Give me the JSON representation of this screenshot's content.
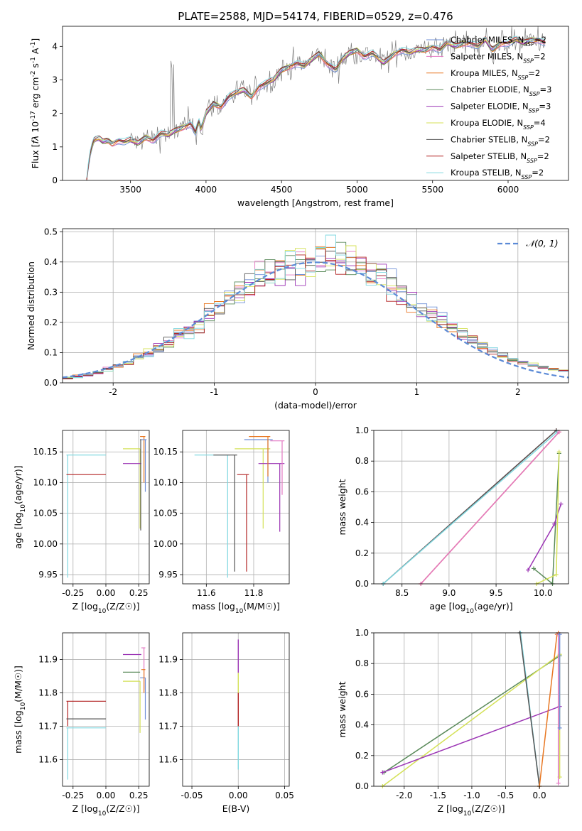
{
  "figure": {
    "title": "PLATE=2588, MJD=54174, FIBERID=0529, z=0.476"
  },
  "colors": {
    "Chabrier MILES": "#6f8fd6",
    "Salpeter MILES": "#e377c2",
    "Kroupa MILES": "#e87722",
    "Chabrier ELODIE": "#5a8a5a",
    "Salpeter ELODIE": "#9c36b5",
    "Kroupa ELODIE": "#d4e157",
    "Chabrier STELIB": "#555555",
    "Salpeter STELIB": "#b22222",
    "Kroupa STELIB": "#80d8e0",
    "data": "#808080",
    "normal": "#5b8ad6"
  },
  "chart_data": [
    {
      "id": "spectrum",
      "type": "line",
      "title": "PLATE=2588, MJD=54174, FIBERID=0529, z=0.476",
      "xlabel": "wavelength [Angstrom, rest frame]",
      "ylabel": "Flux [f_λ 10^-17 erg cm^-2 s^-1 A^-1]",
      "xlim": [
        3050,
        6400
      ],
      "ylim": [
        0,
        4.6
      ],
      "xticks": [
        3500,
        4000,
        4500,
        5000,
        5500,
        6000
      ],
      "yticks": [
        0,
        1,
        2,
        3,
        4
      ],
      "legend_position": "top-right",
      "legend": [
        {
          "name": "Chabrier MILES",
          "text": "Chabrier MILES, N",
          "sub": "SSP",
          "suffix": "=2"
        },
        {
          "name": "Salpeter MILES",
          "text": "Salpeter MILES, N",
          "sub": "SSP",
          "suffix": "=2"
        },
        {
          "name": "Kroupa MILES",
          "text": "Kroupa MILES, N",
          "sub": "SSP",
          "suffix": "=2"
        },
        {
          "name": "Chabrier ELODIE",
          "text": "Chabrier ELODIE, N",
          "sub": "SSP",
          "suffix": "=3"
        },
        {
          "name": "Salpeter ELODIE",
          "text": "Salpeter ELODIE, N",
          "sub": "SSP",
          "suffix": "=3"
        },
        {
          "name": "Kroupa ELODIE",
          "text": "Kroupa ELODIE, N",
          "sub": "SSP",
          "suffix": "=4"
        },
        {
          "name": "Chabrier STELIB",
          "text": "Chabrier STELIB, N",
          "sub": "SSP",
          "suffix": "=2"
        },
        {
          "name": "Salpeter STELIB",
          "text": "Salpeter STELIB, N",
          "sub": "SSP",
          "suffix": "=2"
        },
        {
          "name": "Kroupa STELIB",
          "text": "Kroupa STELIB, N",
          "sub": "SSP",
          "suffix": "=2"
        }
      ],
      "model_curve": {
        "x": [
          3210,
          3225,
          3240,
          3260,
          3290,
          3320,
          3350,
          3380,
          3420,
          3460,
          3500,
          3550,
          3600,
          3650,
          3700,
          3750,
          3800,
          3850,
          3900,
          3933,
          3950,
          3968,
          4000,
          4050,
          4100,
          4150,
          4200,
          4250,
          4300,
          4350,
          4400,
          4450,
          4500,
          4550,
          4600,
          4650,
          4700,
          4750,
          4800,
          4861,
          4900,
          4950,
          5000,
          5050,
          5100,
          5175,
          5200,
          5250,
          5300,
          5350,
          5400,
          5450,
          5500,
          5550,
          5600,
          5650,
          5700,
          5750,
          5800,
          5850,
          5893,
          5950,
          6000,
          6050,
          6100,
          6150,
          6200,
          6250
        ],
        "y": [
          0,
          0.6,
          0.95,
          1.2,
          1.25,
          1.15,
          1.2,
          1.1,
          1.2,
          1.15,
          1.2,
          1.1,
          1.3,
          1.2,
          1.4,
          1.35,
          1.5,
          1.6,
          1.7,
          1.4,
          1.8,
          1.5,
          2.0,
          2.3,
          2.2,
          2.5,
          2.6,
          2.7,
          2.5,
          2.8,
          2.9,
          3.0,
          3.3,
          3.4,
          3.5,
          3.4,
          3.6,
          3.8,
          3.5,
          3.3,
          3.6,
          3.8,
          3.9,
          3.7,
          3.8,
          3.5,
          3.6,
          3.8,
          3.9,
          3.8,
          3.9,
          3.9,
          4.0,
          3.9,
          4.1,
          4.0,
          4.1,
          4.1,
          4.0,
          4.2,
          3.9,
          4.1,
          4.1,
          4.2,
          4.1,
          4.2,
          4.2,
          4.1
        ]
      },
      "data_noise_start": 3500
    },
    {
      "id": "residuals",
      "type": "line",
      "xlabel": "(data-model)/error",
      "ylabel": "Normed distribution",
      "xlim": [
        -2.5,
        2.5
      ],
      "ylim": [
        0,
        0.51
      ],
      "xticks": [
        -2,
        -1,
        0,
        1,
        2
      ],
      "yticks": [
        0,
        0.1,
        0.2,
        0.3,
        0.4,
        0.5
      ],
      "legend_position": "top-right",
      "legend_label": "𝒩(0, 1)",
      "bin_width": 0.1
    },
    {
      "id": "age-vs-Z",
      "type": "line",
      "xlabel": "Z [log10(Z/Z☉)]",
      "ylabel": "age  [log10(age/yr)]",
      "xlim": [
        -0.33,
        0.33
      ],
      "ylim": [
        9.935,
        10.185
      ],
      "xticks": [
        -0.25,
        0.0,
        0.25
      ],
      "yticks": [
        9.95,
        10.0,
        10.05,
        10.1,
        10.15
      ],
      "lines": [
        {
          "model": "Kroupa STELIB",
          "x": [
            -0.3,
            0.0
          ],
          "y": [
            10.145,
            10.145
          ],
          "drop": [
            -0.29,
            9.945
          ]
        },
        {
          "model": "Salpeter STELIB",
          "x": [
            -0.3,
            0.0
          ],
          "y": [
            10.113,
            10.113
          ],
          "drop": null
        },
        {
          "model": "Kroupa ELODIE",
          "x": [
            0.13,
            0.26
          ],
          "y": [
            10.155,
            10.155
          ],
          "drop": [
            0.26,
            10.025
          ]
        },
        {
          "model": "Salpeter ELODIE",
          "x": [
            0.13,
            0.27
          ],
          "y": [
            10.131,
            10.131
          ],
          "drop": null
        },
        {
          "model": "Kroupa MILES",
          "x": [
            0.26,
            0.3
          ],
          "y": [
            10.175,
            10.175
          ],
          "drop": [
            0.29,
            10.1
          ]
        },
        {
          "model": "Chabrier MILES",
          "x": [
            0.27,
            0.31
          ],
          "y": [
            10.17,
            10.17
          ],
          "drop": [
            0.3,
            10.085
          ]
        },
        {
          "model": "Chabrier STELIB",
          "x": [
            0.26,
            0.27
          ],
          "y": [
            10.17,
            10.17
          ],
          "drop": [
            0.265,
            10.022
          ]
        }
      ]
    },
    {
      "id": "age-vs-mass",
      "type": "line",
      "xlabel": "mass [log10(M/M☉)]",
      "ylabel": "",
      "xlim": [
        11.5,
        11.95
      ],
      "ylim": [
        9.935,
        10.185
      ],
      "xticks": [
        11.6,
        11.8
      ],
      "yticks": [
        9.95,
        10.0,
        10.05,
        10.1,
        10.15
      ],
      "lines": [
        {
          "model": "Kroupa STELIB",
          "x": [
            11.55,
            11.7
          ],
          "y": [
            10.145,
            10.145
          ],
          "drop": [
            11.69,
            9.945
          ]
        },
        {
          "model": "Chabrier STELIB",
          "x": [
            11.63,
            11.73
          ],
          "y": [
            10.145,
            10.145
          ],
          "drop": [
            11.72,
            9.955
          ]
        },
        {
          "model": "Salpeter STELIB",
          "x": [
            11.73,
            11.78
          ],
          "y": [
            10.113,
            10.113
          ],
          "drop": [
            11.77,
            9.955
          ]
        },
        {
          "model": "Kroupa ELODIE",
          "x": [
            11.72,
            11.87
          ],
          "y": [
            10.155,
            10.155
          ],
          "drop": [
            11.84,
            10.025
          ]
        },
        {
          "model": "Salpeter ELODIE",
          "x": [
            11.82,
            11.93
          ],
          "y": [
            10.131,
            10.131
          ],
          "drop": [
            11.91,
            10.02
          ]
        },
        {
          "model": "Chabrier MILES",
          "x": [
            11.76,
            11.88
          ],
          "y": [
            10.17,
            10.17
          ],
          "drop": [
            11.86,
            10.1
          ]
        },
        {
          "model": "Kroupa MILES",
          "x": [
            11.78,
            11.87
          ],
          "y": [
            10.175,
            10.175
          ],
          "drop": [
            11.86,
            10.11
          ]
        },
        {
          "model": "Salpeter MILES",
          "x": [
            11.87,
            11.93
          ],
          "y": [
            10.168,
            10.168
          ],
          "drop": [
            11.92,
            10.08
          ]
        }
      ]
    },
    {
      "id": "massweight-vs-age",
      "type": "line",
      "xlabel": "age  [log10(age/yr)]",
      "ylabel": "mass weight",
      "xlim": [
        8.2,
        10.27
      ],
      "ylim": [
        0,
        1.0
      ],
      "xticks": [
        8.5,
        9.0,
        9.5,
        10.0
      ],
      "yticks": [
        0.0,
        0.2,
        0.4,
        0.6,
        0.8,
        1.0
      ],
      "series": [
        {
          "model": "Salpeter STELIB",
          "x": [
            8.3,
            10.14
          ],
          "y": [
            0.0,
            1.0
          ]
        },
        {
          "model": "Chabrier STELIB",
          "x": [
            8.3,
            10.14
          ],
          "y": [
            0.0,
            1.0
          ]
        },
        {
          "model": "Kroupa STELIB",
          "x": [
            8.3,
            10.15
          ],
          "y": [
            0.0,
            0.99
          ]
        },
        {
          "model": "Kroupa MILES",
          "x": [
            8.7,
            10.17
          ],
          "y": [
            0.0,
            0.99
          ]
        },
        {
          "model": "Salpeter MILES",
          "x": [
            8.7,
            10.17
          ],
          "y": [
            0.0,
            0.99
          ]
        },
        {
          "model": "Chabrier ELODIE",
          "x": [
            9.9,
            10.1,
            10.17
          ],
          "y": [
            0.1,
            0.0,
            0.85
          ]
        },
        {
          "model": "Salpeter ELODIE",
          "x": [
            9.84,
            10.12,
            10.19
          ],
          "y": [
            0.09,
            0.39,
            0.52
          ]
        },
        {
          "model": "Kroupa ELODIE",
          "x": [
            9.93,
            10.14,
            10.17
          ],
          "y": [
            0.0,
            0.06,
            0.86
          ]
        }
      ]
    },
    {
      "id": "mass-vs-Z",
      "type": "line",
      "xlabel": "Z [log10(Z/Z☉)]",
      "ylabel": "mass [log10(M/M☉)]",
      "xlim": [
        -0.33,
        0.33
      ],
      "ylim": [
        11.52,
        11.98
      ],
      "xticks": [
        -0.25,
        0.0,
        0.25
      ],
      "yticks": [
        11.6,
        11.7,
        11.8,
        11.9
      ],
      "lines": [
        {
          "model": "Salpeter STELIB",
          "x": [
            -0.3,
            0.0
          ],
          "y": [
            11.775,
            11.775
          ],
          "drop": [
            -0.29,
            11.7
          ]
        },
        {
          "model": "Chabrier STELIB",
          "x": [
            -0.3,
            0.0
          ],
          "y": [
            11.722,
            11.722
          ],
          "drop": null
        },
        {
          "model": "Kroupa STELIB",
          "x": [
            -0.3,
            0.0
          ],
          "y": [
            11.695,
            11.695
          ],
          "drop": [
            -0.29,
            11.54
          ]
        },
        {
          "model": "Salpeter ELODIE",
          "x": [
            0.13,
            0.27
          ],
          "y": [
            11.915,
            11.915
          ],
          "drop": null
        },
        {
          "model": "Chabrier ELODIE",
          "x": [
            0.13,
            0.26
          ],
          "y": [
            11.862,
            11.862
          ],
          "drop": null
        },
        {
          "model": "Kroupa ELODIE",
          "x": [
            0.13,
            0.26
          ],
          "y": [
            11.835,
            11.835
          ],
          "drop": [
            0.26,
            11.68
          ]
        },
        {
          "model": "Chabrier MILES",
          "x": [
            0.26,
            0.3
          ],
          "y": [
            11.845,
            11.845
          ],
          "drop": [
            0.3,
            11.72
          ]
        },
        {
          "model": "Salpeter MILES",
          "x": [
            0.27,
            0.3
          ],
          "y": [
            11.935,
            11.935
          ],
          "drop": [
            0.29,
            11.81
          ]
        },
        {
          "model": "Kroupa MILES",
          "x": [
            0.27,
            0.3
          ],
          "y": [
            11.87,
            11.87
          ],
          "drop": [
            0.29,
            11.8
          ]
        }
      ]
    },
    {
      "id": "mass-vs-ebv",
      "type": "line",
      "xlabel": "E(B-V)",
      "ylabel": "",
      "xlim": [
        -0.06,
        0.055
      ],
      "ylim": [
        11.52,
        11.98
      ],
      "xticks": [
        -0.05,
        0.0,
        0.05
      ],
      "yticks": [
        11.6,
        11.7,
        11.8,
        11.9
      ],
      "segments": [
        {
          "model": "Salpeter ELODIE",
          "x": 0.0,
          "y": [
            11.86,
            11.96
          ]
        },
        {
          "model": "Kroupa ELODIE",
          "x": 0.0,
          "y": [
            11.8,
            11.86
          ]
        },
        {
          "model": "Salpeter STELIB",
          "x": 0.0,
          "y": [
            11.7,
            11.8
          ]
        },
        {
          "model": "Kroupa STELIB",
          "x": 0.0,
          "y": [
            11.57,
            11.7
          ]
        }
      ]
    },
    {
      "id": "massweight-vs-Z",
      "type": "line",
      "xlabel": "Z [log10(Z/Z☉)]",
      "ylabel": "mass weight",
      "xlim": [
        -2.45,
        0.43
      ],
      "ylim": [
        0,
        1.0
      ],
      "xticks": [
        -2.0,
        -1.5,
        -1.0,
        -0.5,
        0.0
      ],
      "yticks": [
        0.0,
        0.2,
        0.4,
        0.6,
        0.8,
        1.0
      ],
      "series": [
        {
          "model": "Chabrier ELODIE",
          "x": [
            -2.3,
            0.3
          ],
          "y": [
            0.09,
            0.85
          ]
        },
        {
          "model": "Kroupa ELODIE",
          "x": [
            -2.32,
            0.3,
            0.3
          ],
          "y": [
            0.0,
            0.86,
            0.06
          ]
        },
        {
          "model": "Salpeter ELODIE",
          "x": [
            -2.32,
            0.3
          ],
          "y": [
            0.09,
            0.52
          ]
        },
        {
          "model": "Kroupa STELIB",
          "x": [
            -0.28,
            0.0
          ],
          "y": [
            1.0,
            0.0
          ]
        },
        {
          "model": "Chabrier STELIB",
          "x": [
            -0.29,
            0.0
          ],
          "y": [
            1.0,
            0.0
          ]
        },
        {
          "model": "Kroupa MILES",
          "x": [
            0.0,
            0.26,
            0.28
          ],
          "y": [
            0.0,
            0.99,
            1.0
          ]
        },
        {
          "model": "Salpeter MILES",
          "x": [
            0.28,
            0.28
          ],
          "y": [
            0.02,
            0.99
          ]
        },
        {
          "model": "Chabrier MILES",
          "x": [
            0.3,
            0.3
          ],
          "y": [
            0.38,
            0.99
          ]
        }
      ]
    }
  ]
}
